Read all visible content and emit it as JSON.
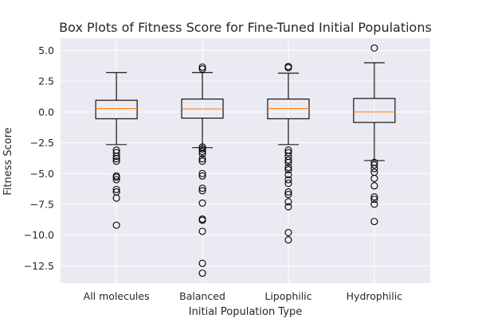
{
  "chart_data": {
    "type": "box",
    "title": "Box Plots of Fitness Score for Fine-Tuned Initial Populations",
    "xlabel": "Initial Population Type",
    "ylabel": "Fitness Score",
    "categories": [
      "All molecules",
      "Balanced",
      "Lipophilic",
      "Hydrophilic"
    ],
    "ylim": [
      -13.9,
      6.0
    ],
    "yticks": [
      5.0,
      2.5,
      0.0,
      -2.5,
      -5.0,
      -7.5,
      -10.0,
      -12.5
    ],
    "ytick_labels": [
      "5.0",
      "2.5",
      "0.0",
      "−2.5",
      "−5.0",
      "−7.5",
      "−10.0",
      "−12.5"
    ],
    "grid": true,
    "boxes": [
      {
        "name": "All molecules",
        "whisker_low": -2.65,
        "q1": -0.55,
        "median": 0.28,
        "q3": 0.95,
        "whisker_high": 3.2,
        "outliers": [
          -3.1,
          -3.3,
          -3.6,
          -3.8,
          -4.0,
          -5.2,
          -5.3,
          -5.5,
          -6.3,
          -6.5,
          -7.0,
          -9.2
        ]
      },
      {
        "name": "Balanced",
        "whisker_low": -2.9,
        "q1": -0.5,
        "median": 0.25,
        "q3": 1.05,
        "whisker_high": 3.2,
        "outliers": [
          3.5,
          3.65,
          -2.85,
          -3.0,
          -3.2,
          -3.4,
          -3.8,
          -4.0,
          -5.0,
          -5.2,
          -6.2,
          -6.4,
          -7.4,
          -8.7,
          -8.8,
          -9.7,
          -12.3,
          -13.1
        ]
      },
      {
        "name": "Lipophilic",
        "whisker_low": -2.65,
        "q1": -0.55,
        "median": 0.28,
        "q3": 1.05,
        "whisker_high": 3.15,
        "outliers": [
          3.6,
          3.7,
          -3.1,
          -3.3,
          -3.6,
          -3.9,
          -4.1,
          -4.5,
          -4.7,
          -5.1,
          -5.5,
          -5.8,
          -6.5,
          -6.7,
          -7.3,
          -7.7,
          -9.8,
          -10.4
        ]
      },
      {
        "name": "Hydrophilic",
        "whisker_low": -3.95,
        "q1": -0.85,
        "median": 0.0,
        "q3": 1.1,
        "whisker_high": 4.0,
        "outliers": [
          5.2,
          -4.1,
          -4.3,
          -4.6,
          -4.9,
          -5.4,
          -6.0,
          -6.9,
          -7.1,
          -7.5,
          -8.9
        ]
      }
    ],
    "colors": {
      "background": "#eaeaf2",
      "grid": "#ffffff",
      "box": "#000000",
      "median": "#ff7f0e"
    }
  }
}
